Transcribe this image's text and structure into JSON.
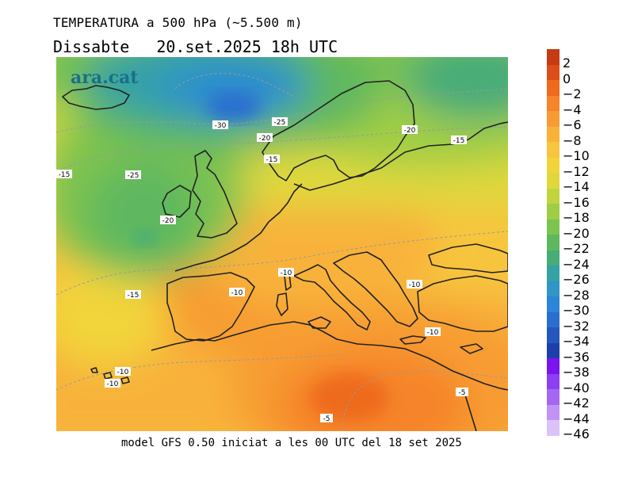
{
  "header": {
    "title": "TEMPERATURA a 500 hPa (~5.500 m)",
    "day": "Dissabte",
    "datetime": "20.set.2025 18h UTC"
  },
  "footer": {
    "text": "model GFS 0.50 iniciat a les 00 UTC del 18 set 2025"
  },
  "map": {
    "logo": "ara.cat",
    "contour_labels": [
      {
        "text": "-30"
      },
      {
        "text": "-25"
      },
      {
        "text": "-20"
      },
      {
        "text": "-15"
      },
      {
        "text": "-20"
      },
      {
        "text": "-15"
      },
      {
        "text": "-15"
      },
      {
        "text": "-25"
      },
      {
        "text": "-20"
      },
      {
        "text": "-15"
      },
      {
        "text": "-10"
      },
      {
        "text": "-10"
      },
      {
        "text": "-10"
      },
      {
        "text": "-10"
      },
      {
        "text": "-10"
      },
      {
        "text": "-10"
      },
      {
        "text": "-5"
      },
      {
        "text": "-5"
      }
    ]
  },
  "colorbar": {
    "labels": [
      "2",
      "0",
      "−2",
      "−4",
      "−6",
      "−8",
      "−10",
      "−12",
      "−14",
      "−16",
      "−18",
      "−20",
      "−22",
      "−24",
      "−26",
      "−28",
      "−30",
      "−32",
      "−34",
      "−36",
      "−38",
      "−40",
      "−42",
      "−44",
      "−46"
    ],
    "colors": [
      "#c63a14",
      "#dc4e18",
      "#ee6a1c",
      "#f6842a",
      "#f79c33",
      "#f8b23a",
      "#f7c53e",
      "#f2d43a",
      "#dfd83c",
      "#c2d43d",
      "#9fcd44",
      "#7dc34f",
      "#5fb85f",
      "#47ac78",
      "#35a2a4",
      "#2f96c6",
      "#2c85d6",
      "#2a6fcf",
      "#2657bd",
      "#1e3ea8",
      "#7a14ee",
      "#8e3ff2",
      "#a567f2",
      "#c193f4",
      "#dcc2f8"
    ]
  }
}
